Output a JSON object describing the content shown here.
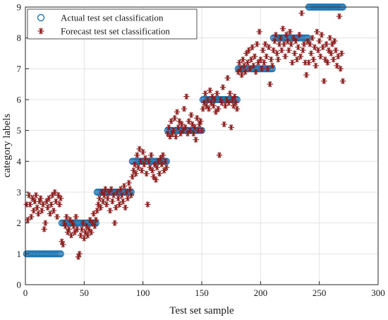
{
  "chart_data": {
    "type": "scatter",
    "title": "",
    "xlabel": "Test set sample",
    "ylabel": "category labels",
    "xlim": [
      0,
      300
    ],
    "ylim": [
      0,
      9
    ],
    "xticks": [
      "0",
      "50",
      "100",
      "150",
      "200",
      "250",
      "300"
    ],
    "yticks": [
      "0",
      "1",
      "2",
      "3",
      "4",
      "5",
      "6",
      "7",
      "8",
      "9"
    ],
    "grid": true,
    "legend_position": "top-left",
    "series": [
      {
        "name": "Actual test set classification",
        "marker": "circle",
        "color": "#1f77b4",
        "segments": [
          {
            "x_start": 1,
            "x_end": 30,
            "y": 1
          },
          {
            "x_start": 31,
            "x_end": 60,
            "y": 2
          },
          {
            "x_start": 61,
            "x_end": 90,
            "y": 3
          },
          {
            "x_start": 91,
            "x_end": 120,
            "y": 4
          },
          {
            "x_start": 121,
            "x_end": 150,
            "y": 5
          },
          {
            "x_start": 151,
            "x_end": 180,
            "y": 6
          },
          {
            "x_start": 181,
            "x_end": 210,
            "y": 7
          },
          {
            "x_start": 211,
            "x_end": 240,
            "y": 8
          },
          {
            "x_start": 241,
            "x_end": 270,
            "y": 9
          }
        ]
      },
      {
        "name": "Forecast test set classification",
        "marker": "asterisk",
        "color": "#8b1a1a",
        "points": [
          [
            1,
            2.6
          ],
          [
            2,
            2.1
          ],
          [
            3,
            2.9
          ],
          [
            4,
            2.6
          ],
          [
            5,
            2.2
          ],
          [
            6,
            2.8
          ],
          [
            7,
            2.4
          ],
          [
            8,
            2.7
          ],
          [
            9,
            2.9
          ],
          [
            10,
            2.5
          ],
          [
            11,
            2.3
          ],
          [
            12,
            2.7
          ],
          [
            13,
            2.8
          ],
          [
            14,
            2.4
          ],
          [
            15,
            2.6
          ],
          [
            16,
            1.8
          ],
          [
            17,
            2.0
          ],
          [
            18,
            2.7
          ],
          [
            19,
            2.5
          ],
          [
            20,
            2.8
          ],
          [
            21,
            2.3
          ],
          [
            22,
            2.6
          ],
          [
            23,
            2.9
          ],
          [
            24,
            2.4
          ],
          [
            25,
            3.0
          ],
          [
            26,
            2.7
          ],
          [
            27,
            2.2
          ],
          [
            28,
            2.9
          ],
          [
            29,
            2.6
          ],
          [
            30,
            2.8
          ],
          [
            31,
            1.4
          ],
          [
            32,
            1.3
          ],
          [
            33,
            2.0
          ],
          [
            34,
            1.9
          ],
          [
            35,
            2.2
          ],
          [
            36,
            1.7
          ],
          [
            37,
            1.8
          ],
          [
            38,
            2.1
          ],
          [
            39,
            1.6
          ],
          [
            40,
            2.0
          ],
          [
            41,
            1.9
          ],
          [
            42,
            1.7
          ],
          [
            43,
            2.2
          ],
          [
            44,
            1.8
          ],
          [
            45,
            0.9
          ],
          [
            46,
            1.0
          ],
          [
            47,
            1.6
          ],
          [
            48,
            1.8
          ],
          [
            49,
            2.0
          ],
          [
            50,
            1.5
          ],
          [
            51,
            1.7
          ],
          [
            52,
            1.9
          ],
          [
            53,
            1.6
          ],
          [
            54,
            1.8
          ],
          [
            55,
            2.1
          ],
          [
            56,
            1.7
          ],
          [
            57,
            2.0
          ],
          [
            58,
            2.3
          ],
          [
            59,
            1.9
          ],
          [
            60,
            2.1
          ],
          [
            61,
            2.4
          ],
          [
            62,
            2.6
          ],
          [
            63,
            2.8
          ],
          [
            64,
            2.5
          ],
          [
            65,
            3.0
          ],
          [
            66,
            2.7
          ],
          [
            67,
            2.9
          ],
          [
            68,
            3.1
          ],
          [
            69,
            2.6
          ],
          [
            70,
            2.8
          ],
          [
            71,
            3.0
          ],
          [
            72,
            2.4
          ],
          [
            73,
            3.1
          ],
          [
            74,
            2.7
          ],
          [
            75,
            2.9
          ],
          [
            76,
            2.0
          ],
          [
            77,
            2.5
          ],
          [
            78,
            3.0
          ],
          [
            79,
            2.8
          ],
          [
            80,
            2.6
          ],
          [
            81,
            3.1
          ],
          [
            82,
            2.9
          ],
          [
            83,
            2.7
          ],
          [
            84,
            3.2
          ],
          [
            85,
            2.5
          ],
          [
            86,
            3.0
          ],
          [
            87,
            2.8
          ],
          [
            88,
            3.3
          ],
          [
            89,
            3.1
          ],
          [
            90,
            2.9
          ],
          [
            91,
            3.5
          ],
          [
            92,
            3.7
          ],
          [
            93,
            3.9
          ],
          [
            94,
            3.6
          ],
          [
            95,
            4.2
          ],
          [
            96,
            3.8
          ],
          [
            97,
            4.4
          ],
          [
            98,
            4.0
          ],
          [
            99,
            3.7
          ],
          [
            100,
            4.3
          ],
          [
            101,
            3.9
          ],
          [
            102,
            4.1
          ],
          [
            103,
            3.6
          ],
          [
            104,
            2.6
          ],
          [
            105,
            4.0
          ],
          [
            106,
            3.8
          ],
          [
            107,
            4.2
          ],
          [
            108,
            3.7
          ],
          [
            109,
            3.5
          ],
          [
            110,
            3.9
          ],
          [
            111,
            3.4
          ],
          [
            112,
            3.8
          ],
          [
            113,
            4.0
          ],
          [
            114,
            3.6
          ],
          [
            115,
            4.1
          ],
          [
            116,
            3.9
          ],
          [
            117,
            4.2
          ],
          [
            118,
            3.7
          ],
          [
            119,
            4.0
          ],
          [
            120,
            3.8
          ],
          [
            121,
            4.9
          ],
          [
            122,
            5.1
          ],
          [
            123,
            4.8
          ],
          [
            124,
            5.3
          ],
          [
            125,
            4.9
          ],
          [
            126,
            5.0
          ],
          [
            127,
            5.4
          ],
          [
            128,
            4.8
          ],
          [
            129,
            5.6
          ],
          [
            130,
            5.1
          ],
          [
            131,
            5.3
          ],
          [
            132,
            4.9
          ],
          [
            133,
            5.2
          ],
          [
            134,
            5.0
          ],
          [
            135,
            5.7
          ],
          [
            136,
            5.1
          ],
          [
            137,
            6.1
          ],
          [
            138,
            4.9
          ],
          [
            139,
            5.3
          ],
          [
            140,
            5.0
          ],
          [
            141,
            5.5
          ],
          [
            142,
            5.2
          ],
          [
            143,
            4.9
          ],
          [
            144,
            5.1
          ],
          [
            145,
            4.7
          ],
          [
            146,
            5.4
          ],
          [
            147,
            5.0
          ],
          [
            148,
            5.2
          ],
          [
            149,
            5.3
          ],
          [
            150,
            5.0
          ],
          [
            151,
            5.7
          ],
          [
            152,
            5.9
          ],
          [
            153,
            6.2
          ],
          [
            154,
            5.8
          ],
          [
            155,
            6.0
          ],
          [
            156,
            5.7
          ],
          [
            157,
            6.3
          ],
          [
            158,
            5.9
          ],
          [
            159,
            6.1
          ],
          [
            160,
            5.8
          ],
          [
            161,
            6.0
          ],
          [
            162,
            5.6
          ],
          [
            163,
            6.2
          ],
          [
            164,
            5.7
          ],
          [
            165,
            4.2
          ],
          [
            166,
            6.0
          ],
          [
            167,
            5.9
          ],
          [
            168,
            6.4
          ],
          [
            169,
            5.2
          ],
          [
            170,
            5.8
          ],
          [
            171,
            6.0
          ],
          [
            172,
            6.7
          ],
          [
            173,
            5.9
          ],
          [
            174,
            6.2
          ],
          [
            175,
            5.1
          ],
          [
            176,
            6.0
          ],
          [
            177,
            5.8
          ],
          [
            178,
            6.1
          ],
          [
            179,
            5.9
          ],
          [
            180,
            5.7
          ],
          [
            181,
            6.9
          ],
          [
            182,
            7.2
          ],
          [
            183,
            7.0
          ],
          [
            184,
            6.8
          ],
          [
            185,
            7.3
          ],
          [
            186,
            7.1
          ],
          [
            187,
            6.9
          ],
          [
            188,
            7.5
          ],
          [
            189,
            7.2
          ],
          [
            190,
            7.6
          ],
          [
            191,
            7.0
          ],
          [
            192,
            7.3
          ],
          [
            193,
            7.7
          ],
          [
            194,
            7.1
          ],
          [
            195,
            7.4
          ],
          [
            196,
            6.9
          ],
          [
            197,
            7.8
          ],
          [
            198,
            7.2
          ],
          [
            199,
            8.2
          ],
          [
            200,
            7.3
          ],
          [
            201,
            7.0
          ],
          [
            202,
            7.6
          ],
          [
            203,
            7.2
          ],
          [
            204,
            7.8
          ],
          [
            205,
            7.4
          ],
          [
            206,
            7.0
          ],
          [
            207,
            7.7
          ],
          [
            208,
            6.5
          ],
          [
            209,
            7.3
          ],
          [
            210,
            7.1
          ],
          [
            211,
            7.6
          ],
          [
            212,
            7.9
          ],
          [
            213,
            8.1
          ],
          [
            214,
            7.5
          ],
          [
            215,
            7.3
          ],
          [
            216,
            7.8
          ],
          [
            217,
            8.0
          ],
          [
            218,
            7.6
          ],
          [
            219,
            8.3
          ],
          [
            220,
            7.8
          ],
          [
            221,
            7.4
          ],
          [
            222,
            8.1
          ],
          [
            223,
            7.9
          ],
          [
            224,
            7.6
          ],
          [
            225,
            8.2
          ],
          [
            226,
            7.8
          ],
          [
            227,
            7.2
          ],
          [
            228,
            8.0
          ],
          [
            229,
            7.5
          ],
          [
            230,
            7.9
          ],
          [
            231,
            7.3
          ],
          [
            232,
            7.7
          ],
          [
            233,
            8.1
          ],
          [
            234,
            7.4
          ],
          [
            235,
            8.8
          ],
          [
            236,
            7.6
          ],
          [
            237,
            7.8
          ],
          [
            238,
            7.2
          ],
          [
            239,
            6.8
          ],
          [
            240,
            7.9
          ],
          [
            241,
            7.2
          ],
          [
            242,
            7.8
          ],
          [
            243,
            7.5
          ],
          [
            244,
            8.0
          ],
          [
            245,
            7.3
          ],
          [
            246,
            7.7
          ],
          [
            247,
            7.1
          ],
          [
            248,
            8.2
          ],
          [
            249,
            7.6
          ],
          [
            250,
            7.9
          ],
          [
            251,
            7.4
          ],
          [
            252,
            8.1
          ],
          [
            253,
            7.7
          ],
          [
            254,
            6.6
          ],
          [
            255,
            7.3
          ],
          [
            256,
            7.8
          ],
          [
            257,
            7.2
          ],
          [
            258,
            7.6
          ],
          [
            259,
            8.0
          ],
          [
            260,
            7.5
          ],
          [
            261,
            7.8
          ],
          [
            262,
            7.3
          ],
          [
            263,
            7.9
          ],
          [
            264,
            7.6
          ],
          [
            265,
            7.1
          ],
          [
            266,
            7.4
          ],
          [
            267,
            8.7
          ],
          [
            268,
            7.0
          ],
          [
            269,
            7.5
          ],
          [
            270,
            6.6
          ]
        ]
      }
    ]
  }
}
